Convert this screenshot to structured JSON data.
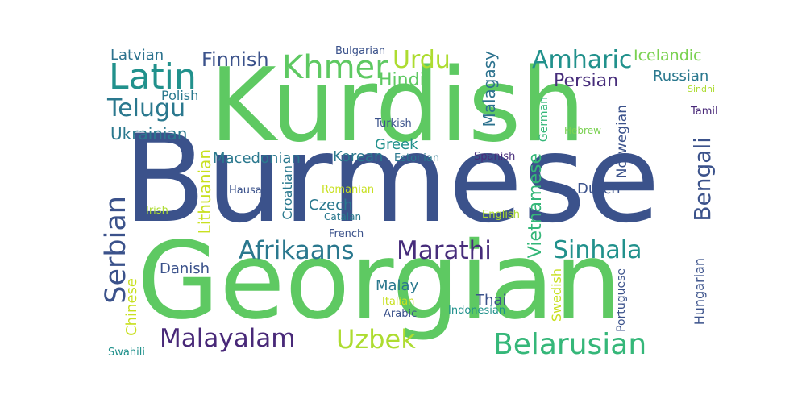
{
  "word_cloud": {
    "words": [
      {
        "text": "Burmese",
        "color": "#3b528b"
      },
      {
        "text": "Kurdish",
        "color": "#5ec962"
      },
      {
        "text": "Georgian",
        "color": "#5ec962"
      },
      {
        "text": "Latin",
        "color": "#21918c"
      },
      {
        "text": "Khmer",
        "color": "#5ec962"
      },
      {
        "text": "Telugu",
        "color": "#2a788e"
      },
      {
        "text": "Urdu",
        "color": "#addc30"
      },
      {
        "text": "Amharic",
        "color": "#21918c"
      },
      {
        "text": "Icelandic",
        "color": "#7ad151"
      },
      {
        "text": "Finnish",
        "color": "#3b528b"
      },
      {
        "text": "Latvian",
        "color": "#2c728e"
      },
      {
        "text": "Bulgarian",
        "color": "#3b528b"
      },
      {
        "text": "Hindi",
        "color": "#5ec962"
      },
      {
        "text": "Persian",
        "color": "#472d7b"
      },
      {
        "text": "Russian",
        "color": "#2a788e"
      },
      {
        "text": "Sindhi",
        "color": "#addc30"
      },
      {
        "text": "Polish",
        "color": "#2a788e"
      },
      {
        "text": "Tamil",
        "color": "#482878"
      },
      {
        "text": "Ukrainian",
        "color": "#2a788e"
      },
      {
        "text": "Turkish",
        "color": "#3b528b"
      },
      {
        "text": "Hebrew",
        "color": "#7ad151"
      },
      {
        "text": "Malagasy",
        "color": "#2c728e"
      },
      {
        "text": "German",
        "color": "#35b779"
      },
      {
        "text": "Norwegian",
        "color": "#3b528b"
      },
      {
        "text": "Greek",
        "color": "#21918c"
      },
      {
        "text": "Macedonian",
        "color": "#2a788e"
      },
      {
        "text": "Korean",
        "color": "#2a788e"
      },
      {
        "text": "Estonian",
        "color": "#2a788e"
      },
      {
        "text": "Spanish",
        "color": "#472d7b"
      },
      {
        "text": "Bengali",
        "color": "#3b528b"
      },
      {
        "text": "Hausa",
        "color": "#3b528b"
      },
      {
        "text": "Croatian",
        "color": "#2a788e"
      },
      {
        "text": "Romanian",
        "color": "#c8e020"
      },
      {
        "text": "Dutch",
        "color": "#3b528b"
      },
      {
        "text": "Vietnamese",
        "color": "#35b779"
      },
      {
        "text": "Serbian",
        "color": "#3b528b"
      },
      {
        "text": "Irish",
        "color": "#addc30"
      },
      {
        "text": "Lithuanian",
        "color": "#c8e020"
      },
      {
        "text": "Czech",
        "color": "#2a788e"
      },
      {
        "text": "Catalan",
        "color": "#2a788e"
      },
      {
        "text": "English",
        "color": "#addc30"
      },
      {
        "text": "French",
        "color": "#3b528b"
      },
      {
        "text": "Afrikaans",
        "color": "#2a788e"
      },
      {
        "text": "Marathi",
        "color": "#472d7b"
      },
      {
        "text": "Sinhala",
        "color": "#21918c"
      },
      {
        "text": "Danish",
        "color": "#3b528b"
      },
      {
        "text": "Chinese",
        "color": "#c8e020"
      },
      {
        "text": "Malay",
        "color": "#2a788e"
      },
      {
        "text": "Thai",
        "color": "#3b528b"
      },
      {
        "text": "Italian",
        "color": "#c8e020"
      },
      {
        "text": "Indonesian",
        "color": "#21918c"
      },
      {
        "text": "Arabic",
        "color": "#3b528b"
      },
      {
        "text": "Swedish",
        "color": "#c8e020"
      },
      {
        "text": "Portuguese",
        "color": "#3b528b"
      },
      {
        "text": "Hungarian",
        "color": "#3b528b"
      },
      {
        "text": "Malayalam",
        "color": "#482878"
      },
      {
        "text": "Uzbek",
        "color": "#addc30"
      },
      {
        "text": "Belarusian",
        "color": "#35b779"
      },
      {
        "text": "Swahili",
        "color": "#21918c"
      }
    ]
  }
}
